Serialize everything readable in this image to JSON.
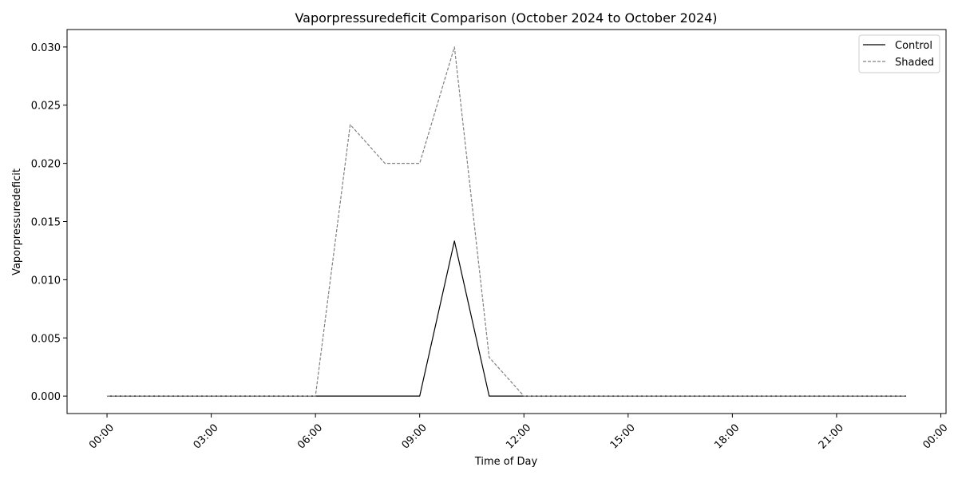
{
  "chart_data": {
    "type": "line",
    "title": "Vaporpressuredeficit Comparison (October 2024 to October 2024)",
    "xlabel": "Time of Day",
    "ylabel": "Vaporpressuredeficit",
    "x_hours": [
      0,
      1,
      2,
      3,
      4,
      5,
      6,
      7,
      8,
      9,
      10,
      11,
      12,
      13,
      14,
      15,
      16,
      17,
      18,
      19,
      20,
      21,
      22,
      23
    ],
    "x_ticks": [
      0,
      3,
      6,
      9,
      12,
      15,
      18,
      21,
      24
    ],
    "x_tick_labels": [
      "00:00",
      "03:00",
      "06:00",
      "09:00",
      "12:00",
      "15:00",
      "18:00",
      "21:00",
      "00:00"
    ],
    "xlim": [
      -1.15,
      24.15
    ],
    "ylim": [
      -0.0015,
      0.0315
    ],
    "y_ticks": [
      0.0,
      0.005,
      0.01,
      0.015,
      0.02,
      0.025,
      0.03
    ],
    "y_tick_labels": [
      "0.000",
      "0.005",
      "0.010",
      "0.015",
      "0.020",
      "0.025",
      "0.030"
    ],
    "grid": false,
    "legend_position": "top-right",
    "series": [
      {
        "name": "Control",
        "color": "#000000",
        "style": "solid",
        "values": [
          0,
          0,
          0,
          0,
          0,
          0,
          0,
          0,
          0,
          0,
          0.01333,
          0,
          0,
          0,
          0,
          0,
          0,
          0,
          0,
          0,
          0,
          0,
          0,
          0
        ]
      },
      {
        "name": "Shaded",
        "color": "#808080",
        "style": "dashed",
        "values": [
          0,
          0,
          0,
          0,
          0,
          0,
          0,
          0.02333,
          0.02,
          0.02,
          0.03,
          0.00333,
          0,
          0,
          0,
          0,
          0,
          0,
          0,
          0,
          0,
          0,
          0,
          0
        ]
      }
    ]
  }
}
